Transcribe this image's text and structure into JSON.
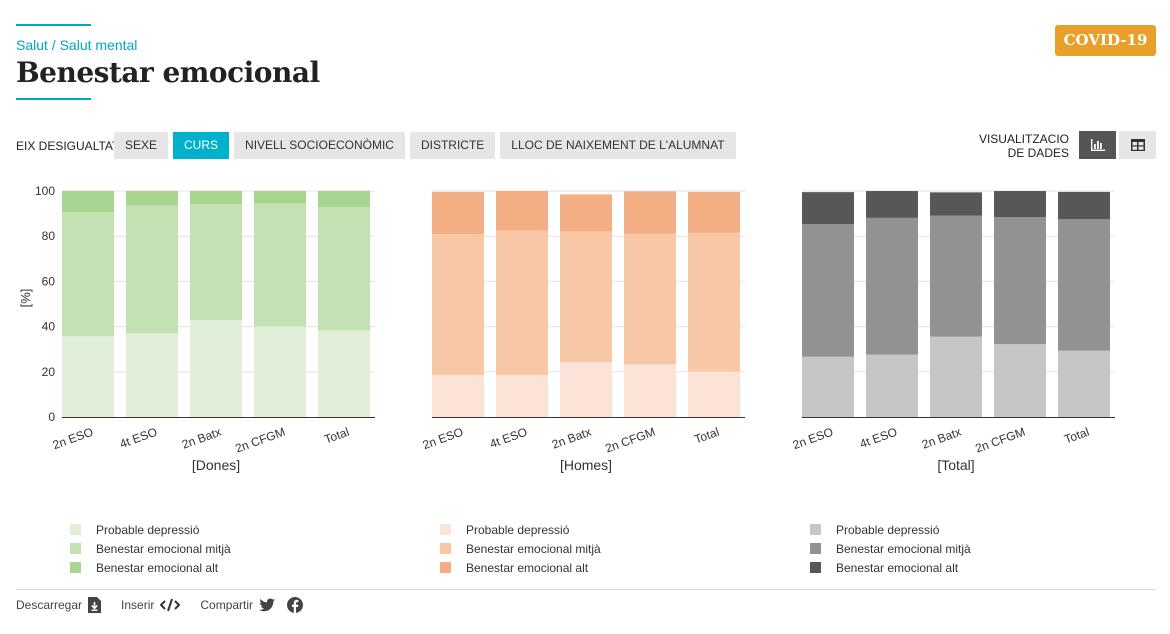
{
  "header": {
    "breadcrumb": "Salut / Salut mental",
    "title": "Benestar emocional",
    "badge": "COVID-19"
  },
  "filters": {
    "label": "EIX DESIGUALTAT",
    "options": [
      "SEXE",
      "CURS",
      "NIVELL SOCIOECONÒMIC",
      "DISTRICTE",
      "LLOC DE NAIXEMENT DE L'ALUMNAT"
    ],
    "active": "CURS"
  },
  "visualization": {
    "label_line1": "VISUALITZACIO",
    "label_line2": "DE DADES",
    "chart_icon": "bar-chart-icon",
    "table_icon": "table-icon"
  },
  "footer": {
    "download": "Descarregar",
    "embed": "Inserir",
    "share": "Compartir"
  },
  "chart_data": [
    {
      "type": "bar",
      "stacked": true,
      "title": "[Dones]",
      "xlabel": "[Dones]",
      "ylabel": "[%]",
      "ylim": [
        0,
        100
      ],
      "yticks": [
        0,
        20,
        40,
        60,
        80,
        100
      ],
      "categories": [
        "2n ESO",
        "4t ESO",
        "2n Batx",
        "2n CFGM",
        "Total"
      ],
      "series": [
        {
          "name": "Probable depressió",
          "color": "#e1efd9",
          "values": [
            35.7,
            37.0,
            42.8,
            40.0,
            38.2
          ]
        },
        {
          "name": "Benestar emocional mitjà",
          "color": "#c4e1b4",
          "values": [
            54.9,
            56.5,
            51.4,
            54.5,
            54.6
          ]
        },
        {
          "name": "Benestar emocional alt",
          "color": "#a8d58f",
          "values": [
            9.4,
            6.5,
            5.8,
            5.5,
            7.2
          ]
        }
      ]
    },
    {
      "type": "bar",
      "stacked": true,
      "title": "[Homes]",
      "xlabel": "[Homes]",
      "ylabel": "",
      "ylim": [
        0,
        100
      ],
      "yticks": [
        0,
        20,
        40,
        60,
        80,
        100
      ],
      "categories": [
        "2n ESO",
        "4t ESO",
        "2n Batx",
        "2n CFGM",
        "Total"
      ],
      "series": [
        {
          "name": "Probable depressió",
          "color": "#fbe4d7",
          "values": [
            18.6,
            18.6,
            24.3,
            23.3,
            20.1
          ]
        },
        {
          "name": "Benestar emocional mitjà",
          "color": "#f8c7a6",
          "values": [
            62.3,
            63.9,
            57.7,
            57.9,
            61.4
          ]
        },
        {
          "name": "Benestar emocional alt",
          "color": "#f4ae84",
          "values": [
            18.7,
            17.5,
            16.5,
            18.6,
            18.1
          ]
        }
      ]
    },
    {
      "type": "bar",
      "stacked": true,
      "title": "[Total]",
      "xlabel": "[Total]",
      "ylabel": "",
      "ylim": [
        0,
        100
      ],
      "yticks": [
        0,
        20,
        40,
        60,
        80,
        100
      ],
      "categories": [
        "2n ESO",
        "4t ESO",
        "2n Batx",
        "2n CFGM",
        "Total"
      ],
      "series": [
        {
          "name": "Probable depressió",
          "color": "#c6c6c6",
          "values": [
            26.7,
            27.6,
            35.6,
            32.2,
            29.4
          ]
        },
        {
          "name": "Benestar emocional mitjà",
          "color": "#929292",
          "values": [
            58.6,
            60.5,
            53.5,
            56.2,
            58.2
          ]
        },
        {
          "name": "Benestar emocional alt",
          "color": "#575757",
          "values": [
            14.2,
            11.9,
            10.3,
            11.6,
            12.0
          ]
        }
      ]
    }
  ]
}
